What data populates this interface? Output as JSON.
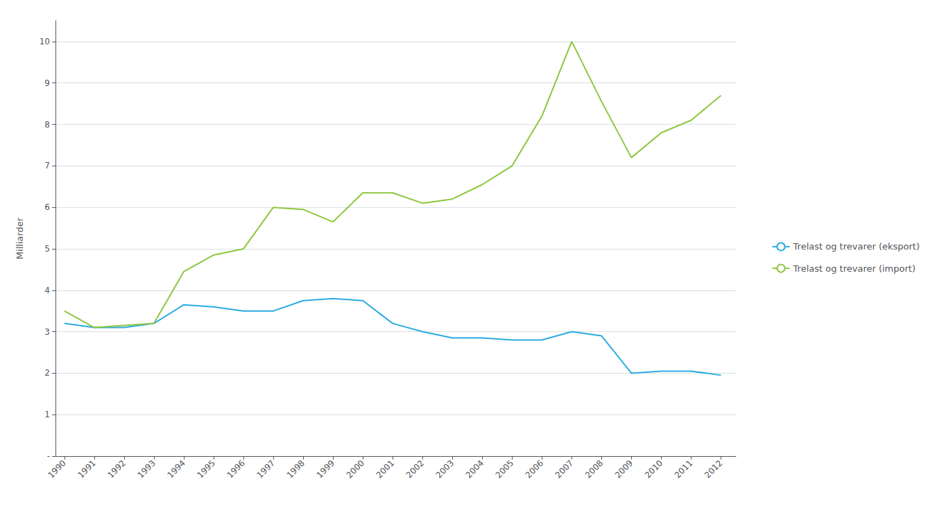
{
  "chart_data": {
    "type": "line",
    "y_label": "Milliarder",
    "x": [
      1990,
      1991,
      1992,
      1993,
      1994,
      1995,
      1996,
      1997,
      1998,
      1999,
      2000,
      2001,
      2002,
      2003,
      2004,
      2005,
      2006,
      2007,
      2008,
      2009,
      2010,
      2011,
      2012
    ],
    "series": [
      {
        "name": "Trelast og trevarer (eksport)",
        "color": "#29ABE2",
        "values": [
          3.2,
          3.1,
          3.1,
          3.2,
          3.65,
          3.6,
          3.5,
          3.5,
          3.75,
          3.8,
          3.75,
          3.2,
          3.0,
          2.85,
          2.85,
          2.8,
          2.8,
          3.0,
          2.9,
          2.0,
          2.05,
          2.05,
          1.95
        ]
      },
      {
        "name": "Trelast og trevarer (import)",
        "color": "#8DC63F",
        "values": [
          3.5,
          3.1,
          3.15,
          3.2,
          4.45,
          4.85,
          5.0,
          6.0,
          5.95,
          5.65,
          6.35,
          6.35,
          6.1,
          6.2,
          6.55,
          7.0,
          8.2,
          10.0,
          8.55,
          7.2,
          7.8,
          8.1,
          8.7
        ]
      }
    ],
    "xlim": [
      1989.7,
      2012.5
    ],
    "xticks": [
      1990,
      1991,
      1992,
      1993,
      1994,
      1995,
      1996,
      1997,
      1998,
      1999,
      2000,
      2001,
      2002,
      2003,
      2004,
      2005,
      2006,
      2007,
      2008,
      2009,
      2010,
      2011,
      2012
    ],
    "ylim": [
      0,
      10.5
    ],
    "yticks": [
      {
        "value": 0,
        "label": "-"
      },
      1,
      2,
      3,
      4,
      5,
      6,
      7,
      8,
      9,
      10
    ],
    "grid": true,
    "legend": "right"
  }
}
